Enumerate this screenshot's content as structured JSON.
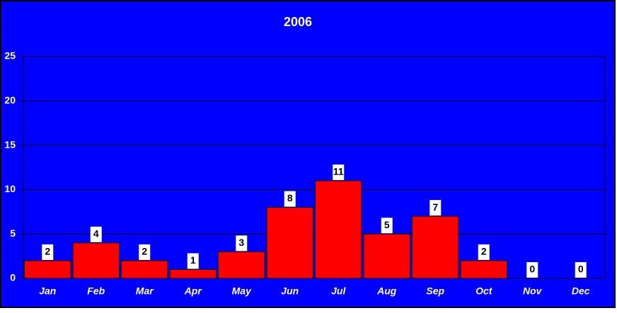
{
  "chart_data": {
    "type": "bar",
    "title": "2006",
    "categories": [
      "Jan",
      "Feb",
      "Mar",
      "Apr",
      "May",
      "Jun",
      "Jul",
      "Aug",
      "Sep",
      "Oct",
      "Nov",
      "Dec"
    ],
    "values": [
      2,
      4,
      2,
      1,
      3,
      8,
      11,
      5,
      7,
      2,
      0,
      0
    ],
    "color": "#ff0000",
    "background": "#0000ff",
    "ylim": [
      0,
      25
    ],
    "yticks": [
      0,
      5,
      10,
      15,
      20,
      25
    ],
    "grid": true
  }
}
